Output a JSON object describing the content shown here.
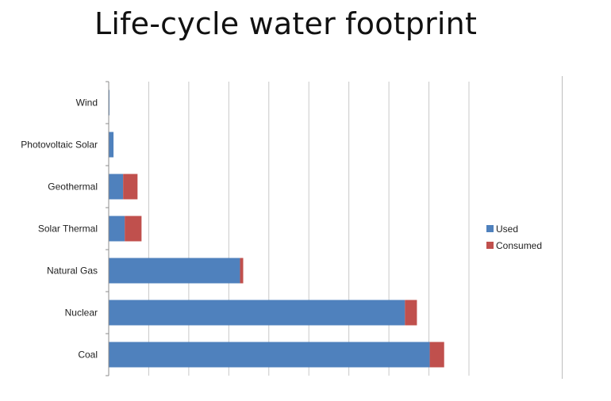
{
  "title": "Life-cycle water footprint",
  "chart_data": {
    "type": "bar",
    "orientation": "horizontal",
    "stacked": true,
    "title": "Life-cycle water footprint",
    "xlabel": "",
    "ylabel": "",
    "categories": [
      "Wind",
      "Photovoltaic Solar",
      "Geothermal",
      "Solar Thermal",
      "Natural Gas",
      "Nuclear",
      "Coal"
    ],
    "series": [
      {
        "name": "Used",
        "color": "#4f81bd",
        "values": [
          0.2,
          1.2,
          3.6,
          4.0,
          32.8,
          74.0,
          80.2
        ]
      },
      {
        "name": "Consumed",
        "color": "#c0504d",
        "values": [
          0,
          0,
          3.6,
          4.2,
          0.8,
          3.0,
          3.6
        ]
      }
    ],
    "xlim": [
      0,
      90
    ],
    "x_gridlines": [
      0,
      10,
      20,
      30,
      40,
      50,
      60,
      70,
      80,
      90
    ],
    "grid": true,
    "show_x_tick_labels": false,
    "legend_position": "right"
  }
}
